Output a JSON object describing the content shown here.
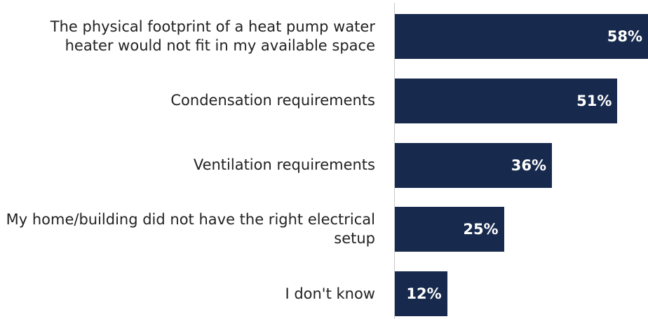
{
  "chart_data": {
    "type": "bar",
    "orientation": "horizontal",
    "categories": [
      "The physical footprint of a heat pump water heater would not fit in my available space",
      "Condensation requirements",
      "Ventilation requirements",
      "My home/building did not have the right electrical setup",
      "I don't know"
    ],
    "values": [
      58,
      51,
      36,
      25,
      12
    ],
    "value_labels": [
      "58%",
      "51%",
      "36%",
      "25%",
      "12%"
    ],
    "color": "#172a4d"
  }
}
